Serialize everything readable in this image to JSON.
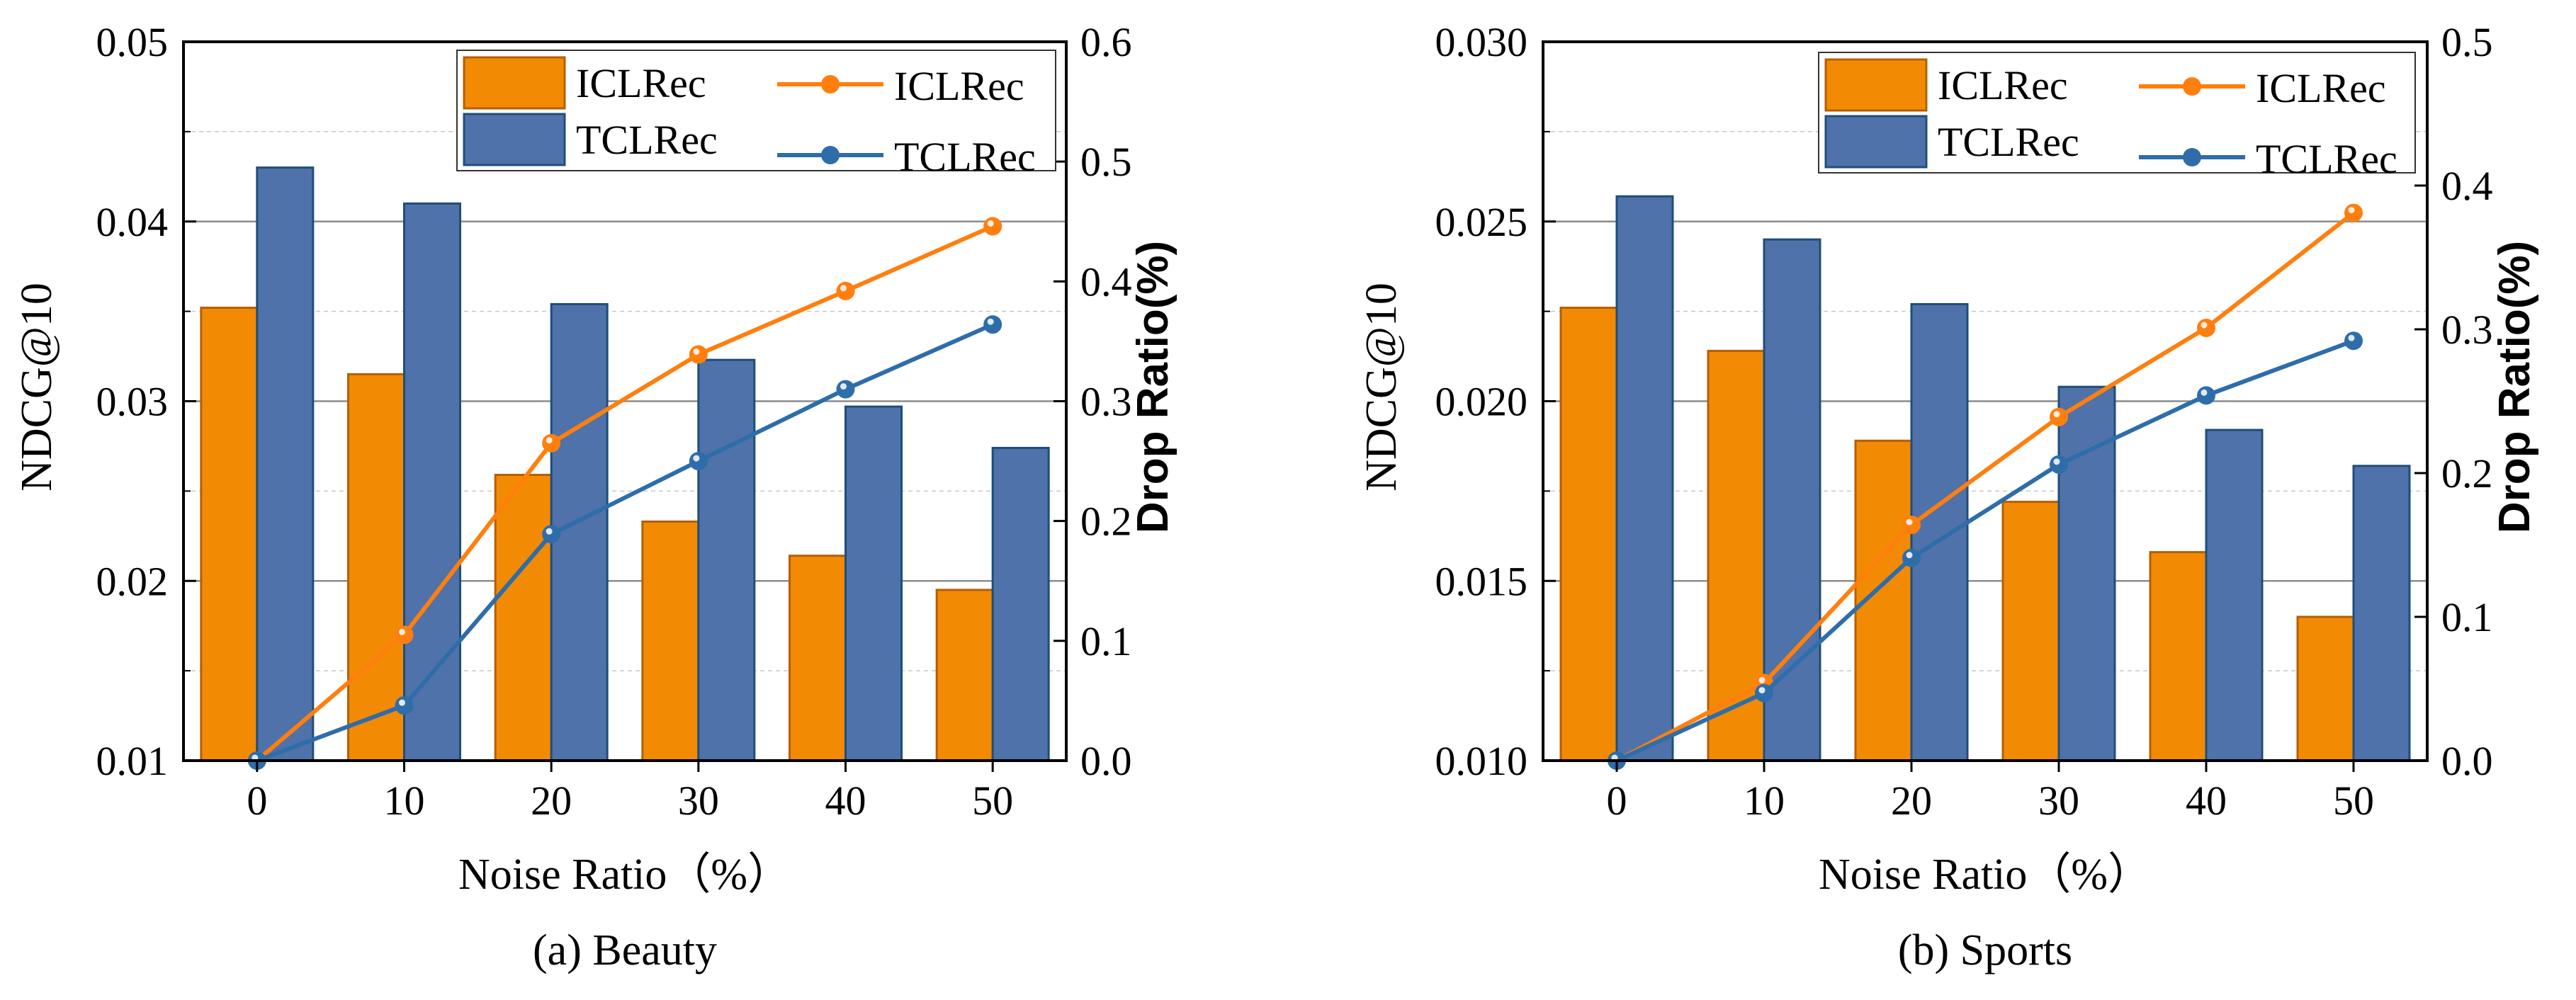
{
  "chart_data": [
    {
      "type": "bar+line",
      "caption": "(a) Beauty",
      "xlabel": "Noise Ratio（%）",
      "ylabel": "NDCG@10",
      "y2label": "Drop Ratio(%)",
      "categories": [
        "0",
        "10",
        "20",
        "30",
        "40",
        "50"
      ],
      "ylim": [
        0.01,
        0.05
      ],
      "yticks": [
        "0.01",
        "0.02",
        "0.03",
        "0.04",
        "0.05"
      ],
      "y2lim": [
        0.0,
        0.6
      ],
      "y2ticks": [
        "0.0",
        "0.1",
        "0.2",
        "0.3",
        "0.4",
        "0.5",
        "0.6"
      ],
      "legend_position": "top-right",
      "bar_series": [
        {
          "name": "ICLRec",
          "color": "#F28A04",
          "values": [
            0.0352,
            0.0315,
            0.0259,
            0.0233,
            0.0214,
            0.0195
          ]
        },
        {
          "name": "TCLRec",
          "color": "#4F72AA",
          "values": [
            0.043,
            0.041,
            0.0354,
            0.0323,
            0.0297,
            0.0274
          ]
        }
      ],
      "line_series": [
        {
          "name": "ICLRec",
          "color": "#FF7F0E",
          "values": [
            0.0,
            0.105,
            0.265,
            0.339,
            0.392,
            0.446
          ]
        },
        {
          "name": "TCLRec",
          "color": "#2E6DAA",
          "values": [
            0.0,
            0.046,
            0.189,
            0.25,
            0.31,
            0.364
          ]
        }
      ]
    },
    {
      "type": "bar+line",
      "caption": "(b) Sports",
      "xlabel": "Noise Ratio（%）",
      "ylabel": "NDCG@10",
      "y2label": "Drop Ratio(%)",
      "categories": [
        "0",
        "10",
        "20",
        "30",
        "40",
        "50"
      ],
      "ylim": [
        0.01,
        0.03
      ],
      "yticks": [
        "0.010",
        "0.015",
        "0.020",
        "0.025",
        "0.030"
      ],
      "y2lim": [
        0.0,
        0.5
      ],
      "y2ticks": [
        "0.0",
        "0.1",
        "0.2",
        "0.3",
        "0.4",
        "0.5"
      ],
      "legend_position": "top-right",
      "bar_series": [
        {
          "name": "ICLRec",
          "color": "#F28A04",
          "values": [
            0.0226,
            0.0214,
            0.0189,
            0.0172,
            0.0158,
            0.014
          ]
        },
        {
          "name": "TCLRec",
          "color": "#4F72AA",
          "values": [
            0.0257,
            0.0245,
            0.0227,
            0.0204,
            0.0192,
            0.0182
          ]
        }
      ],
      "line_series": [
        {
          "name": "ICLRec",
          "color": "#FF7F0E",
          "values": [
            0.0,
            0.054,
            0.164,
            0.239,
            0.301,
            0.381
          ]
        },
        {
          "name": "TCLRec",
          "color": "#2E6DAA",
          "values": [
            0.0,
            0.047,
            0.141,
            0.206,
            0.254,
            0.292
          ]
        }
      ]
    }
  ]
}
